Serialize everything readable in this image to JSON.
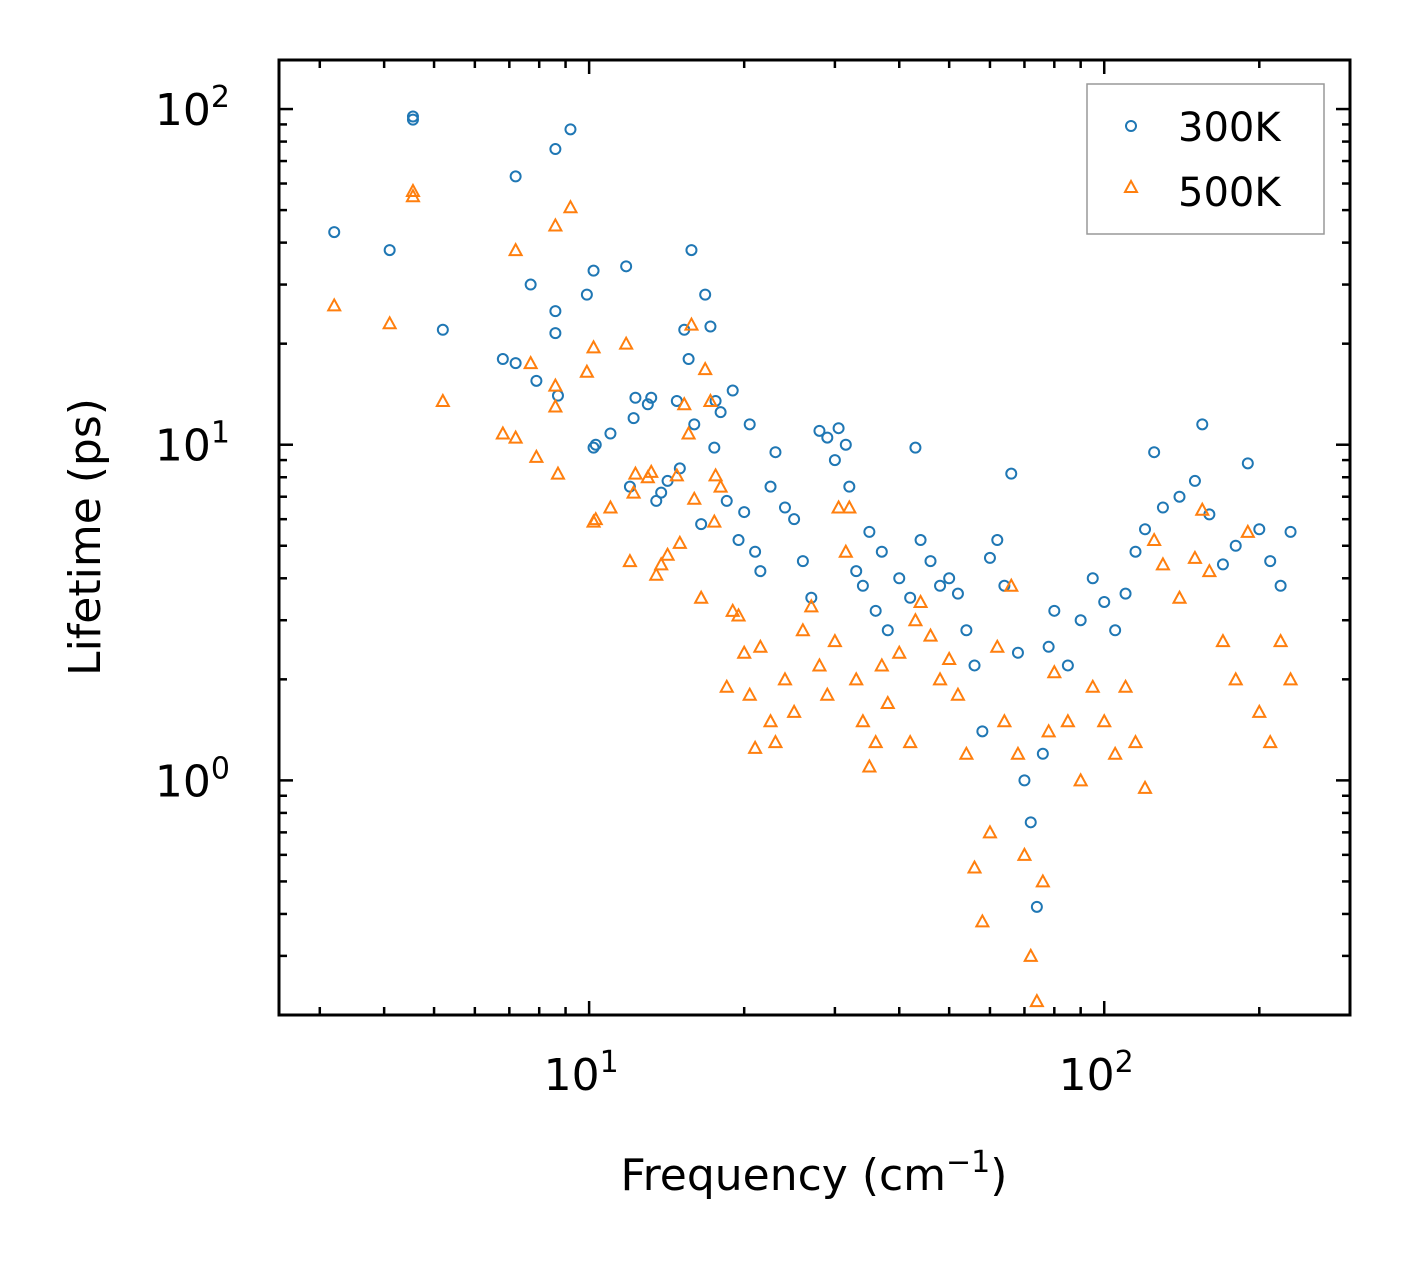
{
  "chart_data": {
    "type": "scatter",
    "title": "",
    "xlabel": "Frequency (cm",
    "xlabel_sup": "−1",
    "xlabel_close": ")",
    "ylabel": "Lifetime (ps)",
    "xscale": "log",
    "yscale": "log",
    "xlim": [
      2.5,
      300
    ],
    "ylim": [
      0.2,
      140
    ],
    "x_ticks": [
      {
        "value": 10,
        "base": "10",
        "exp": "1"
      },
      {
        "value": 100,
        "base": "10",
        "exp": "2"
      }
    ],
    "y_ticks": [
      {
        "value": 1,
        "base": "10",
        "exp": "0"
      },
      {
        "value": 10,
        "base": "10",
        "exp": "1"
      },
      {
        "value": 100,
        "base": "10",
        "exp": "2"
      }
    ],
    "legend_position": "top-right",
    "series": [
      {
        "name": "300K",
        "color": "#1f77b4",
        "marker": "circle",
        "points": [
          [
            3.2,
            43
          ],
          [
            4.1,
            38
          ],
          [
            4.55,
            95
          ],
          [
            4.55,
            93
          ],
          [
            5.2,
            22
          ],
          [
            6.8,
            18
          ],
          [
            7.2,
            17.5
          ],
          [
            7.2,
            63
          ],
          [
            7.7,
            30
          ],
          [
            7.9,
            15.5
          ],
          [
            8.6,
            76
          ],
          [
            8.6,
            25
          ],
          [
            8.6,
            21.5
          ],
          [
            8.7,
            14
          ],
          [
            9.2,
            87
          ],
          [
            9.9,
            28
          ],
          [
            10.2,
            33
          ],
          [
            10.2,
            9.8
          ],
          [
            10.3,
            10
          ],
          [
            11.0,
            10.8
          ],
          [
            11.8,
            34
          ],
          [
            12.0,
            7.5
          ],
          [
            12.2,
            12
          ],
          [
            12.3,
            13.8
          ],
          [
            13.0,
            13.2
          ],
          [
            13.2,
            13.8
          ],
          [
            13.5,
            6.8
          ],
          [
            13.8,
            7.2
          ],
          [
            14.2,
            7.8
          ],
          [
            14.8,
            13.5
          ],
          [
            15.0,
            8.5
          ],
          [
            15.3,
            22
          ],
          [
            15.6,
            18
          ],
          [
            15.8,
            38
          ],
          [
            16.0,
            11.5
          ],
          [
            16.5,
            5.8
          ],
          [
            16.8,
            28
          ],
          [
            17.2,
            22.5
          ],
          [
            17.5,
            9.8
          ],
          [
            17.6,
            13.5
          ],
          [
            18.0,
            12.5
          ],
          [
            18.5,
            6.8
          ],
          [
            19.0,
            14.5
          ],
          [
            19.5,
            5.2
          ],
          [
            20.0,
            6.3
          ],
          [
            20.5,
            11.5
          ],
          [
            21.0,
            4.8
          ],
          [
            21.5,
            4.2
          ],
          [
            22.5,
            7.5
          ],
          [
            23.0,
            9.5
          ],
          [
            24.0,
            6.5
          ],
          [
            25.0,
            6.0
          ],
          [
            26.0,
            4.5
          ],
          [
            27.0,
            3.5
          ],
          [
            28.0,
            11.0
          ],
          [
            29.0,
            10.5
          ],
          [
            30.0,
            9.0
          ],
          [
            30.5,
            11.2
          ],
          [
            31.5,
            10.0
          ],
          [
            32.0,
            7.5
          ],
          [
            33.0,
            4.2
          ],
          [
            34.0,
            3.8
          ],
          [
            35.0,
            5.5
          ],
          [
            36.0,
            3.2
          ],
          [
            37.0,
            4.8
          ],
          [
            38.0,
            2.8
          ],
          [
            40.0,
            4.0
          ],
          [
            42.0,
            3.5
          ],
          [
            43.0,
            9.8
          ],
          [
            44.0,
            5.2
          ],
          [
            46.0,
            4.5
          ],
          [
            48.0,
            3.8
          ],
          [
            50.0,
            4.0
          ],
          [
            52.0,
            3.6
          ],
          [
            54.0,
            2.8
          ],
          [
            56.0,
            2.2
          ],
          [
            58.0,
            1.4
          ],
          [
            60.0,
            4.6
          ],
          [
            62.0,
            5.2
          ],
          [
            64.0,
            3.8
          ],
          [
            66.0,
            8.2
          ],
          [
            68.0,
            2.4
          ],
          [
            70.0,
            1.0
          ],
          [
            72.0,
            0.75
          ],
          [
            74.0,
            0.42
          ],
          [
            76.0,
            1.2
          ],
          [
            78.0,
            2.5
          ],
          [
            80.0,
            3.2
          ],
          [
            85.0,
            2.2
          ],
          [
            90.0,
            3.0
          ],
          [
            95.0,
            4.0
          ],
          [
            100.0,
            3.4
          ],
          [
            105.0,
            2.8
          ],
          [
            110.0,
            3.6
          ],
          [
            115.0,
            4.8
          ],
          [
            120.0,
            5.6
          ],
          [
            125.0,
            9.5
          ],
          [
            130.0,
            6.5
          ],
          [
            140.0,
            7.0
          ],
          [
            150.0,
            7.8
          ],
          [
            155.0,
            11.5
          ],
          [
            160.0,
            6.2
          ],
          [
            170.0,
            4.4
          ],
          [
            180.0,
            5.0
          ],
          [
            190.0,
            8.8
          ],
          [
            200.0,
            5.6
          ],
          [
            210.0,
            4.5
          ],
          [
            220.0,
            3.8
          ],
          [
            230.0,
            5.5
          ]
        ]
      },
      {
        "name": "500K",
        "color": "#ff7f0e",
        "marker": "triangle",
        "points": [
          [
            3.2,
            26
          ],
          [
            4.1,
            23
          ],
          [
            4.55,
            57
          ],
          [
            4.55,
            55
          ],
          [
            5.2,
            13.5
          ],
          [
            6.8,
            10.8
          ],
          [
            7.2,
            10.5
          ],
          [
            7.2,
            38
          ],
          [
            7.7,
            17.5
          ],
          [
            7.9,
            9.2
          ],
          [
            8.6,
            45
          ],
          [
            8.6,
            15
          ],
          [
            8.6,
            13
          ],
          [
            8.7,
            8.2
          ],
          [
            9.2,
            51
          ],
          [
            9.9,
            16.5
          ],
          [
            10.2,
            19.5
          ],
          [
            10.2,
            5.9
          ],
          [
            10.3,
            6.0
          ],
          [
            11.0,
            6.5
          ],
          [
            11.8,
            20
          ],
          [
            12.0,
            4.5
          ],
          [
            12.2,
            7.2
          ],
          [
            12.3,
            8.2
          ],
          [
            13.0,
            8.0
          ],
          [
            13.2,
            8.3
          ],
          [
            13.5,
            4.1
          ],
          [
            13.8,
            4.4
          ],
          [
            14.2,
            4.7
          ],
          [
            14.8,
            8.1
          ],
          [
            15.0,
            5.1
          ],
          [
            15.3,
            13.2
          ],
          [
            15.6,
            10.8
          ],
          [
            15.8,
            22.8
          ],
          [
            16.0,
            6.9
          ],
          [
            16.5,
            3.5
          ],
          [
            16.8,
            16.8
          ],
          [
            17.2,
            13.5
          ],
          [
            17.5,
            5.9
          ],
          [
            17.6,
            8.1
          ],
          [
            18.0,
            7.5
          ],
          [
            18.5,
            1.9
          ],
          [
            19.0,
            3.2
          ],
          [
            19.5,
            3.1
          ],
          [
            20.0,
            2.4
          ],
          [
            20.5,
            1.8
          ],
          [
            21.0,
            1.25
          ],
          [
            21.5,
            2.5
          ],
          [
            22.5,
            1.5
          ],
          [
            23.0,
            1.3
          ],
          [
            24.0,
            2.0
          ],
          [
            25.0,
            1.6
          ],
          [
            26.0,
            2.8
          ],
          [
            27.0,
            3.3
          ],
          [
            28.0,
            2.2
          ],
          [
            29.0,
            1.8
          ],
          [
            30.0,
            2.6
          ],
          [
            30.5,
            6.5
          ],
          [
            31.5,
            4.8
          ],
          [
            32.0,
            6.5
          ],
          [
            33.0,
            2.0
          ],
          [
            34.0,
            1.5
          ],
          [
            35.0,
            1.1
          ],
          [
            36.0,
            1.3
          ],
          [
            37.0,
            2.2
          ],
          [
            38.0,
            1.7
          ],
          [
            40.0,
            2.4
          ],
          [
            42.0,
            1.3
          ],
          [
            43.0,
            3.0
          ],
          [
            44.0,
            3.4
          ],
          [
            46.0,
            2.7
          ],
          [
            48.0,
            2.0
          ],
          [
            50.0,
            2.3
          ],
          [
            52.0,
            1.8
          ],
          [
            54.0,
            1.2
          ],
          [
            56.0,
            0.55
          ],
          [
            58.0,
            0.38
          ],
          [
            60.0,
            0.7
          ],
          [
            62.0,
            2.5
          ],
          [
            64.0,
            1.5
          ],
          [
            66.0,
            3.8
          ],
          [
            68.0,
            1.2
          ],
          [
            70.0,
            0.6
          ],
          [
            72.0,
            0.3
          ],
          [
            74.0,
            0.22
          ],
          [
            76.0,
            0.5
          ],
          [
            78.0,
            1.4
          ],
          [
            80.0,
            2.1
          ],
          [
            85.0,
            1.5
          ],
          [
            90.0,
            1.0
          ],
          [
            95.0,
            1.9
          ],
          [
            100.0,
            1.5
          ],
          [
            105.0,
            1.2
          ],
          [
            110.0,
            1.9
          ],
          [
            115.0,
            1.3
          ],
          [
            120.0,
            0.95
          ],
          [
            125.0,
            5.2
          ],
          [
            130.0,
            4.4
          ],
          [
            140.0,
            3.5
          ],
          [
            150.0,
            4.6
          ],
          [
            155.0,
            6.4
          ],
          [
            160.0,
            4.2
          ],
          [
            170.0,
            2.6
          ],
          [
            180.0,
            2.0
          ],
          [
            190.0,
            5.5
          ],
          [
            200.0,
            1.6
          ],
          [
            210.0,
            1.3
          ],
          [
            220.0,
            2.6
          ],
          [
            230.0,
            2.0
          ]
        ]
      }
    ]
  }
}
